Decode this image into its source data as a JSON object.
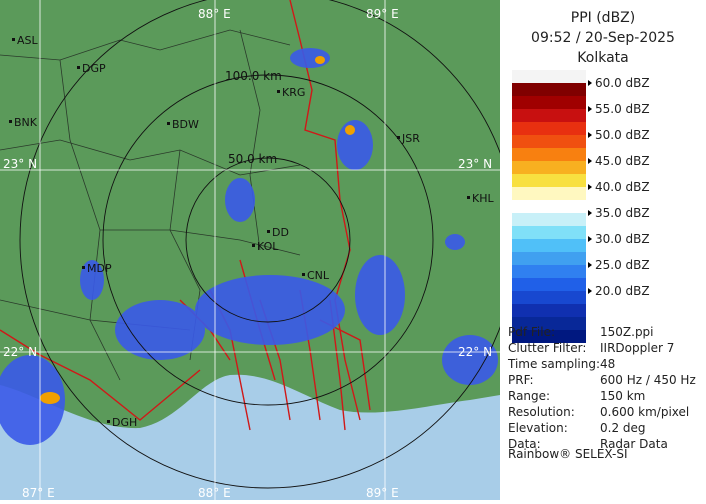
{
  "header": {
    "title": "PPI (dBZ)",
    "time": "09:52 / 20-Sep-2025",
    "station": "Kolkata"
  },
  "legend": {
    "levels": [
      "60.0 dBZ",
      "55.0 dBZ",
      "50.0 dBZ",
      "45.0 dBZ",
      "40.0 dBZ",
      "35.0 dBZ",
      "30.0 dBZ",
      "25.0 dBZ",
      "20.0 dBZ"
    ]
  },
  "info": {
    "rows": [
      [
        "Pdf File:",
        "150Z.ppi"
      ],
      [
        "Clutter Filter:",
        "IIRDoppler 7"
      ],
      [
        "Time sampling:48"
      ],
      [
        "PRF:",
        "600 Hz / 450 Hz"
      ],
      [
        "Range:",
        "150 km"
      ],
      [
        "Resolution:",
        "0.600 km/pixel"
      ],
      [
        "Elevation:",
        "0.2 deg"
      ],
      [
        "Data:",
        "Radar Data"
      ]
    ],
    "footer": "Rainbow® SELEX-SI"
  },
  "map": {
    "grid_labels": [
      "88° E",
      "89° E",
      "87° E",
      "88° E",
      "89° E",
      "23° N",
      "23° N",
      "22° N",
      "22° N"
    ],
    "range_labels": [
      "100.0 km",
      "50.0 km"
    ],
    "places": [
      "ASL",
      "DGP",
      "BNK",
      "BDW",
      "KRG",
      "JSR",
      "KHL",
      "DD",
      "KOL",
      "CNL",
      "MDP",
      "DGH"
    ]
  }
}
